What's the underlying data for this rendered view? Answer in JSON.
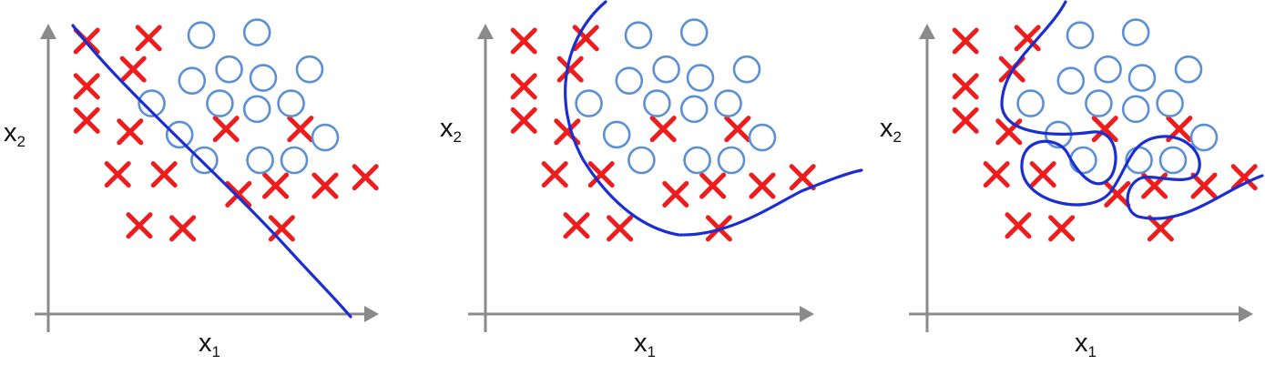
{
  "panels": [
    {
      "id": "underfit",
      "xlabel_base": "x",
      "xlabel_sub": "1",
      "ylabel_base": "x",
      "ylabel_sub": "2",
      "crosses": [
        [
          0.08,
          0.92
        ],
        [
          0.28,
          0.93
        ],
        [
          0.23,
          0.82
        ],
        [
          0.08,
          0.76
        ],
        [
          0.08,
          0.64
        ],
        [
          0.22,
          0.6
        ],
        [
          0.53,
          0.61
        ],
        [
          0.77,
          0.61
        ],
        [
          0.18,
          0.45
        ],
        [
          0.33,
          0.45
        ],
        [
          0.57,
          0.38
        ],
        [
          0.69,
          0.41
        ],
        [
          0.85,
          0.41
        ],
        [
          0.98,
          0.44
        ],
        [
          0.25,
          0.27
        ],
        [
          0.39,
          0.26
        ],
        [
          0.71,
          0.26
        ]
      ],
      "circles": [
        [
          0.45,
          0.94
        ],
        [
          0.63,
          0.95
        ],
        [
          0.54,
          0.82
        ],
        [
          0.8,
          0.82
        ],
        [
          0.42,
          0.78
        ],
        [
          0.65,
          0.79
        ],
        [
          0.29,
          0.7
        ],
        [
          0.51,
          0.7
        ],
        [
          0.63,
          0.68
        ],
        [
          0.74,
          0.7
        ],
        [
          0.85,
          0.58
        ],
        [
          0.38,
          0.59
        ],
        [
          0.46,
          0.5
        ],
        [
          0.64,
          0.5
        ],
        [
          0.75,
          0.5
        ]
      ]
    },
    {
      "id": "good-fit",
      "xlabel_base": "x",
      "xlabel_sub": "1",
      "ylabel_base": "x",
      "ylabel_sub": "2",
      "crosses": [
        [
          0.08,
          0.92
        ],
        [
          0.28,
          0.93
        ],
        [
          0.23,
          0.82
        ],
        [
          0.08,
          0.76
        ],
        [
          0.08,
          0.64
        ],
        [
          0.22,
          0.6
        ],
        [
          0.53,
          0.61
        ],
        [
          0.77,
          0.61
        ],
        [
          0.18,
          0.45
        ],
        [
          0.33,
          0.45
        ],
        [
          0.57,
          0.38
        ],
        [
          0.69,
          0.41
        ],
        [
          0.85,
          0.41
        ],
        [
          0.98,
          0.44
        ],
        [
          0.25,
          0.27
        ],
        [
          0.39,
          0.26
        ],
        [
          0.71,
          0.26
        ]
      ],
      "circles": [
        [
          0.45,
          0.94
        ],
        [
          0.63,
          0.95
        ],
        [
          0.54,
          0.82
        ],
        [
          0.8,
          0.82
        ],
        [
          0.42,
          0.78
        ],
        [
          0.65,
          0.79
        ],
        [
          0.29,
          0.7
        ],
        [
          0.51,
          0.7
        ],
        [
          0.63,
          0.68
        ],
        [
          0.74,
          0.7
        ],
        [
          0.85,
          0.58
        ],
        [
          0.38,
          0.59
        ],
        [
          0.46,
          0.5
        ],
        [
          0.64,
          0.5
        ],
        [
          0.75,
          0.5
        ]
      ]
    },
    {
      "id": "overfit",
      "xlabel_base": "x",
      "xlabel_sub": "1",
      "ylabel_base": "x",
      "ylabel_sub": "2",
      "crosses": [
        [
          0.08,
          0.92
        ],
        [
          0.28,
          0.93
        ],
        [
          0.23,
          0.82
        ],
        [
          0.08,
          0.76
        ],
        [
          0.08,
          0.64
        ],
        [
          0.22,
          0.6
        ],
        [
          0.53,
          0.61
        ],
        [
          0.77,
          0.61
        ],
        [
          0.18,
          0.45
        ],
        [
          0.33,
          0.45
        ],
        [
          0.57,
          0.38
        ],
        [
          0.69,
          0.41
        ],
        [
          0.85,
          0.41
        ],
        [
          0.98,
          0.44
        ],
        [
          0.25,
          0.27
        ],
        [
          0.39,
          0.26
        ],
        [
          0.71,
          0.26
        ]
      ],
      "circles": [
        [
          0.45,
          0.94
        ],
        [
          0.63,
          0.95
        ],
        [
          0.54,
          0.82
        ],
        [
          0.8,
          0.82
        ],
        [
          0.42,
          0.78
        ],
        [
          0.65,
          0.79
        ],
        [
          0.29,
          0.7
        ],
        [
          0.51,
          0.7
        ],
        [
          0.63,
          0.68
        ],
        [
          0.74,
          0.7
        ],
        [
          0.85,
          0.58
        ],
        [
          0.38,
          0.59
        ],
        [
          0.46,
          0.5
        ],
        [
          0.64,
          0.5
        ],
        [
          0.75,
          0.5
        ]
      ]
    }
  ],
  "colors": {
    "cross": "#ee1c1c",
    "circle": "#5b8fd6",
    "boundary": "#1a2ed1",
    "axis": "#8a8a8a"
  }
}
